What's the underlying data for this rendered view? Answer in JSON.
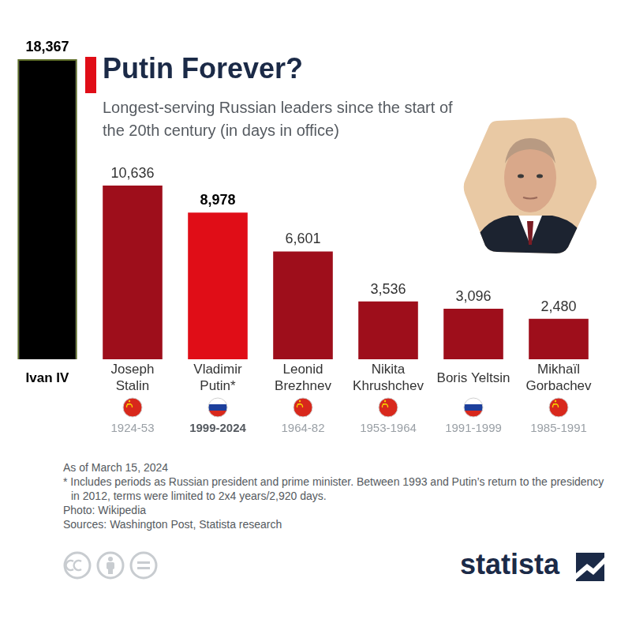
{
  "chart_data": {
    "type": "bar",
    "title": "Putin Forever?",
    "subtitle": "Longest-serving Russian leaders since the start of the 20th century (in days in office)",
    "categories": [
      "Ivan IV",
      "Joseph Stalin",
      "Vladimir Putin*",
      "Leonid Brezhnev",
      "Nikita Khrushchev",
      "Boris Yeltsin",
      "Mikhaïl Gorbachev"
    ],
    "years": [
      null,
      "1924-53",
      "1999-2024",
      "1964-82",
      "1953-1964",
      "1991-1999",
      "1985-1991"
    ],
    "values": [
      18367,
      10636,
      8978,
      6601,
      3536,
      3096,
      2480
    ],
    "value_labels": [
      "18,367",
      "10,636",
      "8,978",
      "6,601",
      "3,536",
      "3,096",
      "2,480"
    ],
    "colors": [
      "#000000",
      "#9e0e1b",
      "#e00d17",
      "#9e0e1b",
      "#9e0e1b",
      "#9e0e1b",
      "#9e0e1b"
    ],
    "ylim": [
      0,
      18367
    ],
    "grid": false,
    "data_labels": true,
    "tick_labels": "x",
    "notes": [
      "As of March 15, 2024",
      "* Includes periods as Russian president and prime minister. Between 1993 and Putin’s return to the presidency in 2012, terms were limited to 2x4 years/2,920 days.",
      "Photo: Wikipedia",
      "Sources: Washington Post, Statista research"
    ],
    "logo": "statista"
  }
}
